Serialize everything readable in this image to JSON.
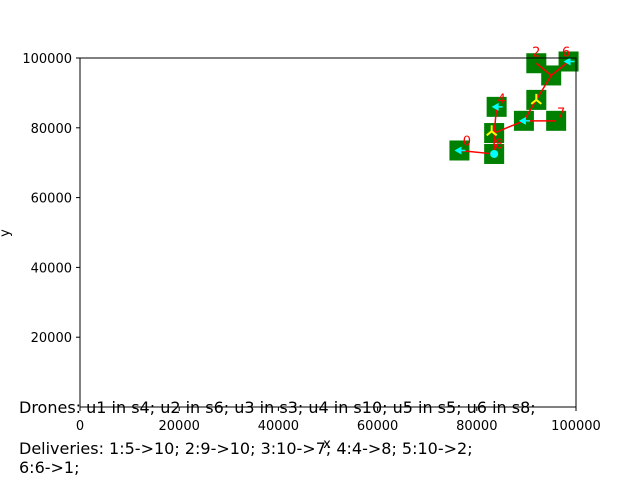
{
  "chart_data": {
    "type": "scatter",
    "title": "",
    "xlabel": "x",
    "ylabel": "y",
    "xlim": [
      0,
      100000
    ],
    "ylim": [
      0,
      100000
    ],
    "x_ticks": [
      0,
      20000,
      40000,
      60000,
      80000,
      100000
    ],
    "y_ticks": [
      20000,
      40000,
      60000,
      80000,
      100000
    ],
    "grid": false,
    "colors": {
      "site": "#008000",
      "route": "#ff0000",
      "drone": "#ffff00",
      "drone_alt": "#00ffff",
      "label": "#ff0000"
    },
    "sites": [
      {
        "x": 76500,
        "y": 73500
      },
      {
        "x": 83500,
        "y": 72500
      },
      {
        "x": 83500,
        "y": 78500
      },
      {
        "x": 84000,
        "y": 86000
      },
      {
        "x": 89500,
        "y": 82000
      },
      {
        "x": 92000,
        "y": 88000
      },
      {
        "x": 92000,
        "y": 98500
      },
      {
        "x": 96000,
        "y": 82000
      },
      {
        "x": 95000,
        "y": 95000
      },
      {
        "x": 98500,
        "y": 99000
      }
    ],
    "routes": [
      [
        [
          76500,
          73500
        ],
        [
          83500,
          72500
        ],
        [
          83500,
          78500
        ],
        [
          84000,
          86000
        ]
      ],
      [
        [
          83500,
          78500
        ],
        [
          89500,
          82000
        ],
        [
          96000,
          82000
        ]
      ],
      [
        [
          89500,
          82000
        ],
        [
          92000,
          88000
        ],
        [
          95000,
          95000
        ],
        [
          92000,
          98500
        ]
      ],
      [
        [
          95000,
          95000
        ],
        [
          98500,
          99000
        ]
      ]
    ],
    "drones": [
      {
        "x": 76500,
        "y": 73500,
        "shape": "arrow",
        "color": "cyan"
      },
      {
        "x": 83500,
        "y": 72500,
        "shape": "dot",
        "color": "cyan"
      },
      {
        "x": 83000,
        "y": 79000,
        "shape": "tri",
        "color": "yellow"
      },
      {
        "x": 84000,
        "y": 86000,
        "shape": "arrow",
        "color": "cyan"
      },
      {
        "x": 89500,
        "y": 82000,
        "shape": "arrow",
        "color": "cyan"
      },
      {
        "x": 92000,
        "y": 88000,
        "shape": "tri",
        "color": "yellow"
      },
      {
        "x": 98500,
        "y": 99000,
        "shape": "arrow",
        "color": "cyan"
      }
    ],
    "labels": [
      {
        "text": "0",
        "x": 78000,
        "y": 75000
      },
      {
        "text": "8",
        "x": 84500,
        "y": 74000
      },
      {
        "text": "4",
        "x": 85000,
        "y": 87000
      },
      {
        "text": "7",
        "x": 97000,
        "y": 83000
      },
      {
        "text": "2",
        "x": 92000,
        "y": 100500
      },
      {
        "text": "6",
        "x": 98000,
        "y": 100500
      }
    ]
  },
  "captions": {
    "drones": "Drones: u1 in s4; u2 in s6; u3 in s3; u4 in s10; u5 in s5; u6 in s8;",
    "deliveries_line1": "Deliveries: 1:5->10; 2:9->10; 3:10->7; 4:4->8; 5:10->2;",
    "deliveries_line2": "6:6->1;"
  }
}
